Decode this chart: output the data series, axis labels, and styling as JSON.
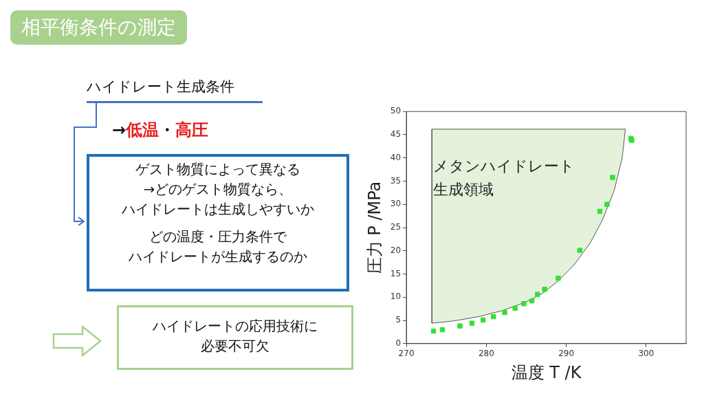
{
  "chart_data": {
    "type": "scatter",
    "title": "相平衡条件の測定",
    "xlabel": "温度 T /K",
    "ylabel": "圧力 P /MPa",
    "xlim": [
      270,
      305
    ],
    "xticks": [
      270,
      280,
      290,
      300
    ],
    "ylim": [
      0,
      50
    ],
    "yticks": [
      0,
      5,
      10,
      15,
      20,
      25,
      30,
      35,
      40,
      45,
      50
    ],
    "grid": false,
    "legend": false,
    "series": [
      {
        "type": "area",
        "color": "#e4f2dc",
        "x": [
          273.2,
          273.2,
          276,
          279,
          282,
          285,
          287,
          289,
          291,
          293,
          294.5,
          296,
          297,
          297.4,
          273.2
        ],
        "values": [
          46.2,
          4.4,
          4.9,
          5.8,
          7.1,
          9.0,
          10.8,
          13.5,
          17.0,
          21.7,
          26.5,
          33,
          40,
          46.2,
          46.2
        ]
      },
      {
        "color": "#33e033",
        "marker": "square",
        "x": [
          273.4,
          274.5,
          276.7,
          278.2,
          279.6,
          280.9,
          282.3,
          283.6,
          284.7,
          285.7,
          286.4,
          287.3,
          289.0,
          291.7,
          294.2,
          295.1,
          295.8,
          298.1,
          298.2
        ],
        "values": [
          2.7,
          3.0,
          3.8,
          4.4,
          5.1,
          5.8,
          6.7,
          7.6,
          8.6,
          9.2,
          10.6,
          11.7,
          14.1,
          20.1,
          28.5,
          30.0,
          35.8,
          44.2,
          43.8
        ]
      }
    ],
    "annotations": [
      "ハイドレート生成条件",
      "→",
      "低温",
      "・",
      "高圧",
      "ゲスト物質によって異なる",
      "→どのゲスト物質なら、",
      "ハイドレートは生成しやすいか",
      "どの温度・圧力条件で",
      "ハイドレートが生成するのか",
      "ハイドレートの応用技術に",
      "必要不可欠",
      {
        "text": "メタンハイドレート",
        "x": 273.2,
        "y": 38
      },
      {
        "text": "生成領域",
        "x": 273.2,
        "y": 33
      }
    ]
  }
}
